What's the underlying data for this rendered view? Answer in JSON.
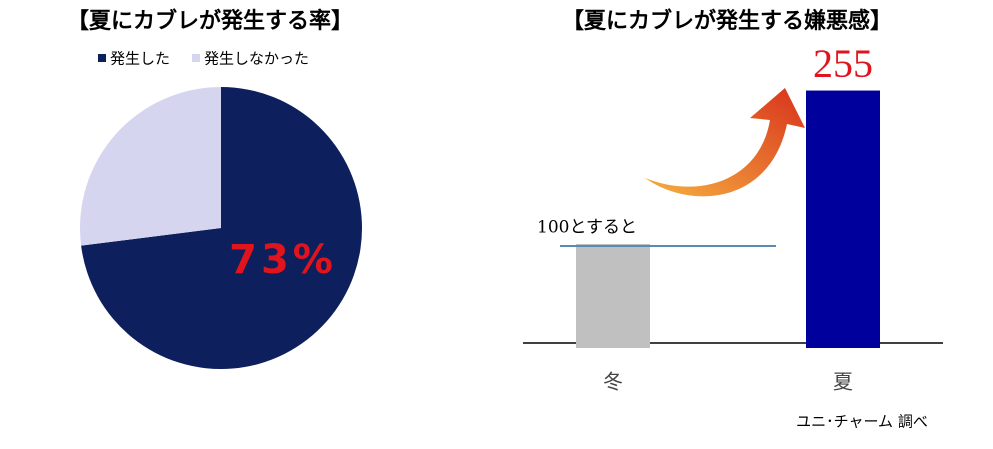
{
  "chart_data": [
    {
      "type": "pie",
      "title": "【夏にカブレが発生する率】",
      "series": [
        {
          "name": "発生した",
          "color": "#0d1f5c"
        },
        {
          "name": "発生しなかった",
          "color": "#d5d5f0"
        }
      ],
      "values": [
        73,
        27
      ],
      "value_labels": [
        "73%",
        null
      ],
      "label_color": "#e0141c"
    },
    {
      "type": "bar",
      "title": "【夏にカブレが発生する嫌悪感】",
      "categories": [
        "冬",
        "夏"
      ],
      "values": [
        100,
        255
      ],
      "colors": [
        "#c0c0c0",
        "#00009c"
      ],
      "annotation": "100とすると",
      "source": "ユニ･チャーム 調べ",
      "value_label_color": "#e0141c"
    }
  ]
}
